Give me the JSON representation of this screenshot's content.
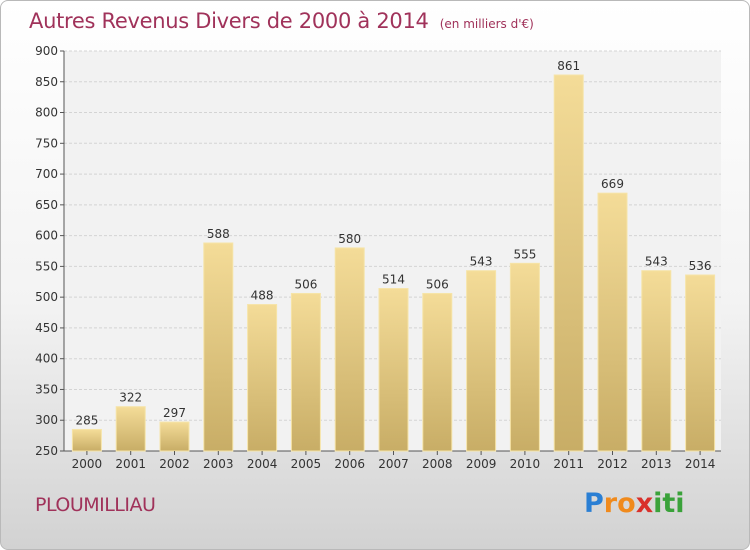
{
  "chart_data": {
    "type": "bar",
    "title": "Autres Revenus Divers de 2000 à 2014",
    "subtitle": "(en milliers d'€)",
    "categories": [
      "2000",
      "2001",
      "2002",
      "2003",
      "2004",
      "2005",
      "2006",
      "2007",
      "2008",
      "2009",
      "2010",
      "2011",
      "2012",
      "2013",
      "2014"
    ],
    "values": [
      285,
      322,
      297,
      588,
      488,
      506,
      580,
      514,
      506,
      543,
      555,
      861,
      669,
      543,
      536
    ],
    "ylim": [
      250,
      900
    ],
    "yticks": [
      250,
      300,
      350,
      400,
      450,
      500,
      550,
      600,
      650,
      700,
      750,
      800,
      850,
      900
    ],
    "grid": true,
    "bar_color": "#e8cf86"
  },
  "footer": {
    "commune": "PLOUMILLIAU",
    "logo_letters": [
      "P",
      "r",
      "o",
      "x",
      "i",
      "t",
      "i"
    ],
    "logo_colors": [
      "#2a7fd4",
      "#f08a1c",
      "#f08a1c",
      "#d9302b",
      "#3aa23a",
      "#3aa23a",
      "#3aa23a"
    ]
  }
}
